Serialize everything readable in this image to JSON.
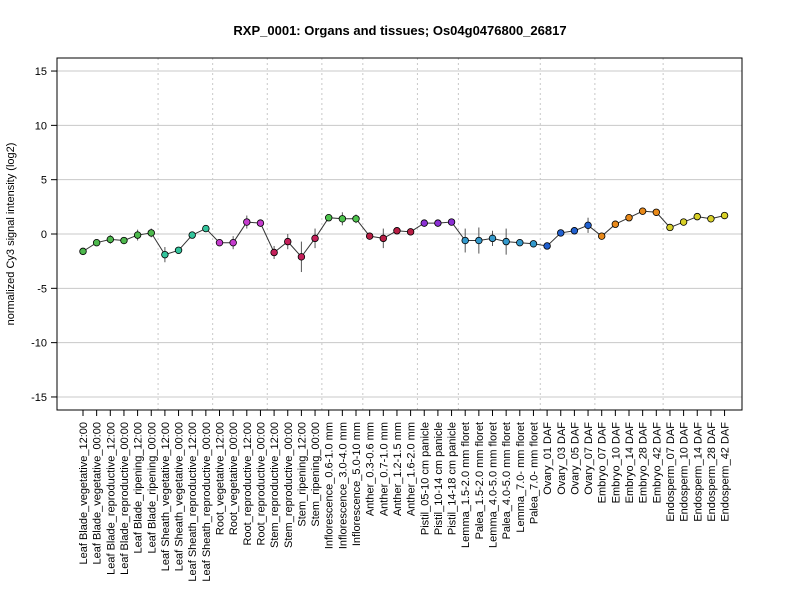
{
  "chart_data": {
    "type": "line",
    "title": "RXP_0001: Organs and tissues; Os04g0476800_26817",
    "ylabel": "normalized Cy3 signal intensity (log2)",
    "xlabel": "",
    "ylim": [
      -16.2,
      16.2
    ],
    "yticks": [
      -15,
      -10,
      -5,
      0,
      5,
      10,
      15
    ],
    "grid": true,
    "categories": [
      "Leaf Blade_vegetative_12:00",
      "Leaf Blade_vegetative_00:00",
      "Leaf Blade_reproductive_12:00",
      "Leaf Blade_reproductive_00:00",
      "Leaf Blade_ripening_12:00",
      "Leaf Blade_ripening_00:00",
      "Leaf Sheath_vegetative_12:00",
      "Leaf Sheath_vegetative_00:00",
      "Leaf Sheath_reproductive_12:00",
      "Leaf Sheath_reproductive_00:00",
      "Root_vegetative_12:00",
      "Root_vegetative_00:00",
      "Root_reproductive_12:00",
      "Root_reproductive_00:00",
      "Stem_reproductive_12:00",
      "Stem_reproductive_00:00",
      "Stem_ripening_12:00",
      "Stem_ripening_00:00",
      "Inflorescence_0.6-1.0 mm",
      "Inflorescence_3.0-4.0 mm",
      "Inflorescence_5.0-10 mm",
      "Anther_0.3-0.6 mm",
      "Anther_0.7-1.0 mm",
      "Anther_1.2-1.5 mm",
      "Anther_1.6-2.0 mm",
      "Pistil_05-10 cm panicle",
      "Pistil_10-14 cm panicle",
      "Pistil_14-18 cm panicle",
      "Lemma_1.5-2.0 mm floret",
      "Palea_1.5-2.0 mm floret",
      "Lemma_4.0-5.0 mm floret",
      "Palea_4.0-5.0 mm floret",
      "Lemma_7.0- mm floret",
      "Palea_7.0- mm floret",
      "Ovary_01 DAF",
      "Ovary_03 DAF",
      "Ovary_05 DAF",
      "Ovary_07 DAF",
      "Embryo_07 DAF",
      "Embryo_10 DAF",
      "Embryo_14 DAF",
      "Embryo_28 DAF",
      "Embryo_42 DAF",
      "Endosperm_07 DAF",
      "Endosperm_10 DAF",
      "Endosperm_14 DAF",
      "Endosperm_28 DAF",
      "Endosperm_42 DAF"
    ],
    "series": [
      {
        "values": [
          -1.6,
          -0.8,
          -0.5,
          -0.6,
          -0.1,
          0.1,
          -1.9,
          -1.5,
          -0.1,
          0.5,
          -0.8,
          -0.8,
          1.1,
          1.0,
          -1.7,
          -0.7,
          -2.1,
          -0.4,
          1.5,
          1.4,
          1.4,
          -0.2,
          -0.4,
          0.3,
          0.2,
          1.0,
          1.0,
          1.1,
          -0.6,
          -0.6,
          -0.4,
          -0.7,
          -0.8,
          -0.9,
          -1.1,
          0.1,
          0.3,
          0.8,
          -0.2,
          0.9,
          1.5,
          2.1,
          2.0,
          0.6,
          1.1,
          1.6,
          1.4,
          1.7
        ],
        "error": [
          0.3,
          0.3,
          0.4,
          0.2,
          0.5,
          0.4,
          0.7,
          0.3,
          0.3,
          0.3,
          0.3,
          0.6,
          0.6,
          0.3,
          0.6,
          0.7,
          1.4,
          0.9,
          0.3,
          0.6,
          0.4,
          0.3,
          0.9,
          0.3,
          0.3,
          0.3,
          0.3,
          0.3,
          1.1,
          1.2,
          0.7,
          1.2,
          0.3,
          0.3,
          0.3,
          0.3,
          0.3,
          0.7,
          0.3,
          0.3,
          0.3,
          0.3,
          0.3,
          0.3,
          0.3,
          0.3,
          0.3,
          0.3
        ],
        "colors": [
          "#4db84d",
          "#4db84d",
          "#4db84d",
          "#4db84d",
          "#4db84d",
          "#4db84d",
          "#33c49c",
          "#33c49c",
          "#33c49c",
          "#33c49c",
          "#c43ccd",
          "#c43ccd",
          "#c43ccd",
          "#c43ccd",
          "#c4205a",
          "#c4205a",
          "#c4205a",
          "#c4205a",
          "#4dc44d",
          "#4dc44d",
          "#4dc44d",
          "#b81d44",
          "#b81d44",
          "#b81d44",
          "#b81d44",
          "#8b30d4",
          "#8b30d4",
          "#8b30d4",
          "#3399cc",
          "#3399cc",
          "#3399cc",
          "#3399cc",
          "#3399cc",
          "#3399cc",
          "#2060d0",
          "#2060d0",
          "#2060d0",
          "#2060d0",
          "#e8891a",
          "#e8891a",
          "#e8891a",
          "#e8891a",
          "#e8891a",
          "#d8d028",
          "#d8d028",
          "#d8d028",
          "#d8d028",
          "#d8d028"
        ]
      }
    ],
    "group_separators_after": [
      5,
      9,
      13,
      17,
      20,
      24,
      27,
      33,
      37,
      42
    ]
  }
}
